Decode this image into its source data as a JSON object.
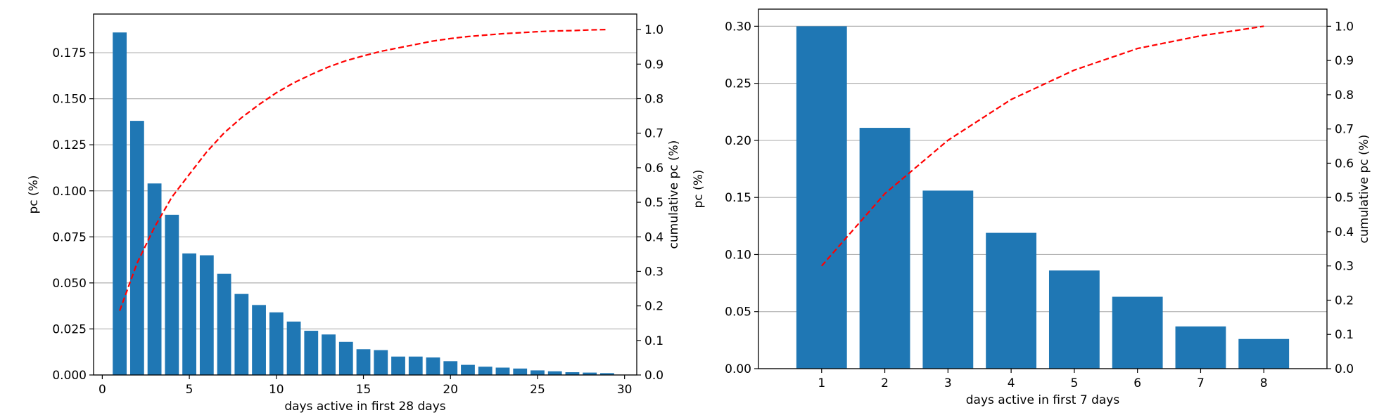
{
  "chart_data": [
    {
      "type": "bar",
      "xlabel": "days active in first 28 days",
      "ylabel": "pc (%)",
      "ylabel_right": "cumulative pc (%)",
      "grid": "y",
      "bar_color": "#1f77b4",
      "line_color": "#ff0000",
      "xlim": [
        -0.5,
        30.7
      ],
      "ylim": [
        0,
        0.196
      ],
      "ylim_right": [
        0,
        1.045
      ],
      "x_ticks": [
        "0",
        "5",
        "10",
        "15",
        "20",
        "25",
        "30"
      ],
      "y_ticks": [
        "0.000",
        "0.025",
        "0.050",
        "0.075",
        "0.100",
        "0.125",
        "0.150",
        "0.175"
      ],
      "y_ticks_right": [
        "0.0",
        "0.1",
        "0.2",
        "0.3",
        "0.4",
        "0.5",
        "0.6",
        "0.7",
        "0.8",
        "0.9",
        "1.0"
      ],
      "x": [
        1,
        2,
        3,
        4,
        5,
        6,
        7,
        8,
        9,
        10,
        11,
        12,
        13,
        14,
        15,
        16,
        17,
        18,
        19,
        20,
        21,
        22,
        23,
        24,
        25,
        26,
        27,
        28,
        29
      ],
      "values": [
        0.186,
        0.138,
        0.104,
        0.087,
        0.066,
        0.065,
        0.055,
        0.044,
        0.038,
        0.034,
        0.029,
        0.024,
        0.022,
        0.018,
        0.014,
        0.0135,
        0.01,
        0.01,
        0.0095,
        0.0075,
        0.0055,
        0.0045,
        0.004,
        0.0035,
        0.0025,
        0.002,
        0.0015,
        0.0013,
        0.001
      ],
      "series": [
        {
          "type": "line",
          "style": "dashed",
          "axis": "right",
          "x": [
            1,
            2,
            3,
            4,
            5,
            6,
            7,
            8,
            9,
            10,
            11,
            12,
            13,
            14,
            15,
            16,
            17,
            18,
            19,
            20,
            21,
            22,
            23,
            24,
            25,
            26,
            27,
            28,
            29
          ],
          "values": [
            0.186,
            0.324,
            0.428,
            0.515,
            0.581,
            0.646,
            0.701,
            0.745,
            0.783,
            0.817,
            0.846,
            0.87,
            0.892,
            0.91,
            0.924,
            0.937,
            0.947,
            0.957,
            0.967,
            0.974,
            0.98,
            0.984,
            0.988,
            0.991,
            0.994,
            0.996,
            0.997,
            0.999,
            1.0
          ]
        }
      ]
    },
    {
      "type": "bar",
      "xlabel": "days active in first 7 days",
      "ylabel": "pc (%)",
      "ylabel_right": "cumulative pc (%)",
      "grid": "y",
      "bar_color": "#1f77b4",
      "line_color": "#ff0000",
      "xlim": [
        0.0,
        9.0
      ],
      "ylim": [
        0,
        0.315
      ],
      "ylim_right": [
        0,
        1.05
      ],
      "x_ticks": [
        "1",
        "2",
        "3",
        "4",
        "5",
        "6",
        "7",
        "8"
      ],
      "y_ticks": [
        "0.00",
        "0.05",
        "0.10",
        "0.15",
        "0.20",
        "0.25",
        "0.30"
      ],
      "y_ticks_right": [
        "0.0",
        "0.1",
        "0.2",
        "0.3",
        "0.4",
        "0.5",
        "0.6",
        "0.7",
        "0.8",
        "0.9",
        "1.0"
      ],
      "x": [
        1,
        2,
        3,
        4,
        5,
        6,
        7,
        8
      ],
      "values": [
        0.3,
        0.211,
        0.156,
        0.119,
        0.086,
        0.063,
        0.037,
        0.026
      ],
      "series": [
        {
          "type": "line",
          "style": "dashed",
          "axis": "right",
          "x": [
            1,
            2,
            3,
            4,
            5,
            6,
            7,
            8
          ],
          "values": [
            0.3,
            0.511,
            0.667,
            0.786,
            0.872,
            0.935,
            0.972,
            1.0
          ]
        }
      ]
    }
  ]
}
